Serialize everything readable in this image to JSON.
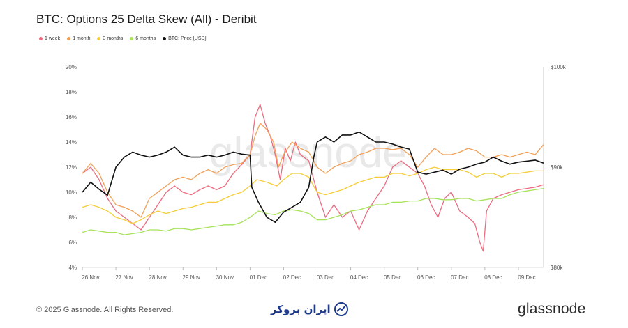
{
  "chart_data": {
    "type": "line",
    "title": "BTC: Options 25 Delta Skew (All) - Deribit",
    "watermark": "glassnode",
    "x_tick_labels": [
      "26 Nov",
      "27 Nov",
      "28 Nov",
      "29 Nov",
      "30 Nov",
      "01 Dec",
      "02 Dec",
      "03 Dec",
      "04 Dec",
      "05 Dec",
      "06 Dec",
      "07 Dec",
      "08 Dec",
      "09 Dec"
    ],
    "x_range_days": [
      0,
      13.75
    ],
    "y_left": {
      "ticks": [
        "4%",
        "6%",
        "8%",
        "10%",
        "12%",
        "14%",
        "16%",
        "18%",
        "20%"
      ],
      "range": [
        4,
        20
      ]
    },
    "y_right": {
      "ticks": [
        "$80k",
        "$90k",
        "$100k"
      ],
      "range": [
        80000,
        100000
      ]
    },
    "series": [
      {
        "name": "1 week",
        "color": "#ec6b7f",
        "axis": "left",
        "points": [
          [
            0,
            11.5
          ],
          [
            0.25,
            12.0
          ],
          [
            0.5,
            11.0
          ],
          [
            0.75,
            9.5
          ],
          [
            1.0,
            8.5
          ],
          [
            1.25,
            8.0
          ],
          [
            1.5,
            7.5
          ],
          [
            1.75,
            7.0
          ],
          [
            2.0,
            8.0
          ],
          [
            2.25,
            9.0
          ],
          [
            2.5,
            10.0
          ],
          [
            2.75,
            10.5
          ],
          [
            3.0,
            10.0
          ],
          [
            3.25,
            9.8
          ],
          [
            3.5,
            10.2
          ],
          [
            3.75,
            10.5
          ],
          [
            4.0,
            10.2
          ],
          [
            4.25,
            10.5
          ],
          [
            4.5,
            11.5
          ],
          [
            4.75,
            12.2
          ],
          [
            5.0,
            13.0
          ],
          [
            5.15,
            16.0
          ],
          [
            5.3,
            17.0
          ],
          [
            5.45,
            15.5
          ],
          [
            5.6,
            14.5
          ],
          [
            5.75,
            13.0
          ],
          [
            5.9,
            11.0
          ],
          [
            6.05,
            13.5
          ],
          [
            6.2,
            12.5
          ],
          [
            6.35,
            14.0
          ],
          [
            6.5,
            13.0
          ],
          [
            6.75,
            12.5
          ],
          [
            7.0,
            10.0
          ],
          [
            7.25,
            8.0
          ],
          [
            7.5,
            9.0
          ],
          [
            7.75,
            8.0
          ],
          [
            8.0,
            8.5
          ],
          [
            8.25,
            7.0
          ],
          [
            8.5,
            8.5
          ],
          [
            8.75,
            9.5
          ],
          [
            9.0,
            10.5
          ],
          [
            9.25,
            12.0
          ],
          [
            9.5,
            12.5
          ],
          [
            9.75,
            12.0
          ],
          [
            10.0,
            11.5
          ],
          [
            10.2,
            10.5
          ],
          [
            10.4,
            9.0
          ],
          [
            10.6,
            8.0
          ],
          [
            10.8,
            9.5
          ],
          [
            11.0,
            10.0
          ],
          [
            11.25,
            8.5
          ],
          [
            11.5,
            8.0
          ],
          [
            11.7,
            7.5
          ],
          [
            11.85,
            6.0
          ],
          [
            11.95,
            5.3
          ],
          [
            12.05,
            8.5
          ],
          [
            12.25,
            9.5
          ],
          [
            12.5,
            9.8
          ],
          [
            12.75,
            10.0
          ],
          [
            13.0,
            10.2
          ],
          [
            13.25,
            10.3
          ],
          [
            13.5,
            10.4
          ],
          [
            13.75,
            10.6
          ]
        ]
      },
      {
        "name": "1 month",
        "color": "#f0a057",
        "axis": "left",
        "points": [
          [
            0,
            11.5
          ],
          [
            0.25,
            12.3
          ],
          [
            0.5,
            11.5
          ],
          [
            0.75,
            10.0
          ],
          [
            1.0,
            9.0
          ],
          [
            1.25,
            8.8
          ],
          [
            1.5,
            8.5
          ],
          [
            1.75,
            8.0
          ],
          [
            2.0,
            9.5
          ],
          [
            2.25,
            10.0
          ],
          [
            2.5,
            10.5
          ],
          [
            2.75,
            11.0
          ],
          [
            3.0,
            11.2
          ],
          [
            3.25,
            11.0
          ],
          [
            3.5,
            11.5
          ],
          [
            3.75,
            11.8
          ],
          [
            4.0,
            11.5
          ],
          [
            4.25,
            12.0
          ],
          [
            4.5,
            12.2
          ],
          [
            4.75,
            12.3
          ],
          [
            5.0,
            13.0
          ],
          [
            5.15,
            14.5
          ],
          [
            5.3,
            15.5
          ],
          [
            5.5,
            15.0
          ],
          [
            5.7,
            14.0
          ],
          [
            5.85,
            12.0
          ],
          [
            6.0,
            13.0
          ],
          [
            6.25,
            14.0
          ],
          [
            6.5,
            13.5
          ],
          [
            6.75,
            13.2
          ],
          [
            7.0,
            12.0
          ],
          [
            7.25,
            11.5
          ],
          [
            7.5,
            12.0
          ],
          [
            7.75,
            12.3
          ],
          [
            8.0,
            12.5
          ],
          [
            8.25,
            13.0
          ],
          [
            8.5,
            13.2
          ],
          [
            8.75,
            13.5
          ],
          [
            9.0,
            13.5
          ],
          [
            9.25,
            13.4
          ],
          [
            9.5,
            13.5
          ],
          [
            9.75,
            13.0
          ],
          [
            10.0,
            12.0
          ],
          [
            10.25,
            12.8
          ],
          [
            10.5,
            13.5
          ],
          [
            10.75,
            13.0
          ],
          [
            11.0,
            13.0
          ],
          [
            11.25,
            13.2
          ],
          [
            11.5,
            13.5
          ],
          [
            11.75,
            13.3
          ],
          [
            12.0,
            12.8
          ],
          [
            12.25,
            12.8
          ],
          [
            12.5,
            13.0
          ],
          [
            12.75,
            12.8
          ],
          [
            13.0,
            13.0
          ],
          [
            13.25,
            13.2
          ],
          [
            13.5,
            13.0
          ],
          [
            13.75,
            13.8
          ]
        ]
      },
      {
        "name": "3 months",
        "color": "#f4cd38",
        "axis": "left",
        "points": [
          [
            0,
            8.8
          ],
          [
            0.25,
            9.0
          ],
          [
            0.5,
            8.8
          ],
          [
            0.75,
            8.5
          ],
          [
            1.0,
            8.0
          ],
          [
            1.25,
            7.8
          ],
          [
            1.5,
            7.5
          ],
          [
            1.75,
            7.8
          ],
          [
            2.0,
            8.2
          ],
          [
            2.25,
            8.5
          ],
          [
            2.5,
            8.3
          ],
          [
            2.75,
            8.5
          ],
          [
            3.0,
            8.7
          ],
          [
            3.25,
            8.8
          ],
          [
            3.5,
            9.0
          ],
          [
            3.75,
            9.2
          ],
          [
            4.0,
            9.2
          ],
          [
            4.25,
            9.5
          ],
          [
            4.5,
            9.8
          ],
          [
            4.75,
            10.0
          ],
          [
            5.0,
            10.5
          ],
          [
            5.2,
            11.0
          ],
          [
            5.5,
            10.8
          ],
          [
            5.8,
            10.5
          ],
          [
            6.0,
            11.0
          ],
          [
            6.25,
            11.5
          ],
          [
            6.5,
            11.5
          ],
          [
            6.75,
            11.2
          ],
          [
            7.0,
            10.0
          ],
          [
            7.25,
            9.8
          ],
          [
            7.5,
            10.0
          ],
          [
            7.75,
            10.2
          ],
          [
            8.0,
            10.5
          ],
          [
            8.25,
            10.8
          ],
          [
            8.5,
            11.0
          ],
          [
            8.75,
            11.2
          ],
          [
            9.0,
            11.2
          ],
          [
            9.25,
            11.5
          ],
          [
            9.5,
            11.5
          ],
          [
            9.75,
            11.3
          ],
          [
            10.0,
            11.5
          ],
          [
            10.25,
            11.8
          ],
          [
            10.5,
            12.0
          ],
          [
            10.75,
            11.8
          ],
          [
            11.0,
            11.8
          ],
          [
            11.25,
            11.8
          ],
          [
            11.5,
            11.6
          ],
          [
            11.75,
            11.2
          ],
          [
            12.0,
            11.5
          ],
          [
            12.25,
            11.5
          ],
          [
            12.5,
            11.2
          ],
          [
            12.75,
            11.5
          ],
          [
            13.0,
            11.5
          ],
          [
            13.25,
            11.6
          ],
          [
            13.5,
            11.7
          ],
          [
            13.75,
            11.7
          ]
        ]
      },
      {
        "name": "6 months",
        "color": "#a6e25a",
        "axis": "left",
        "points": [
          [
            0,
            6.8
          ],
          [
            0.25,
            7.0
          ],
          [
            0.5,
            6.9
          ],
          [
            0.75,
            6.8
          ],
          [
            1.0,
            6.8
          ],
          [
            1.25,
            6.6
          ],
          [
            1.5,
            6.7
          ],
          [
            1.75,
            6.8
          ],
          [
            2.0,
            7.0
          ],
          [
            2.25,
            7.0
          ],
          [
            2.5,
            6.9
          ],
          [
            2.75,
            7.1
          ],
          [
            3.0,
            7.1
          ],
          [
            3.25,
            7.0
          ],
          [
            3.5,
            7.1
          ],
          [
            3.75,
            7.2
          ],
          [
            4.0,
            7.3
          ],
          [
            4.25,
            7.4
          ],
          [
            4.5,
            7.4
          ],
          [
            4.75,
            7.6
          ],
          [
            5.0,
            8.0
          ],
          [
            5.25,
            8.5
          ],
          [
            5.5,
            8.3
          ],
          [
            5.75,
            8.2
          ],
          [
            6.0,
            8.5
          ],
          [
            6.25,
            8.6
          ],
          [
            6.5,
            8.5
          ],
          [
            6.75,
            8.3
          ],
          [
            7.0,
            7.8
          ],
          [
            7.25,
            7.8
          ],
          [
            7.5,
            8.0
          ],
          [
            7.75,
            8.2
          ],
          [
            8.0,
            8.5
          ],
          [
            8.25,
            8.6
          ],
          [
            8.5,
            8.8
          ],
          [
            8.75,
            9.0
          ],
          [
            9.0,
            9.0
          ],
          [
            9.25,
            9.2
          ],
          [
            9.5,
            9.2
          ],
          [
            9.75,
            9.3
          ],
          [
            10.0,
            9.3
          ],
          [
            10.25,
            9.5
          ],
          [
            10.5,
            9.5
          ],
          [
            10.75,
            9.4
          ],
          [
            11.0,
            9.4
          ],
          [
            11.25,
            9.5
          ],
          [
            11.5,
            9.5
          ],
          [
            11.75,
            9.3
          ],
          [
            12.0,
            9.4
          ],
          [
            12.25,
            9.5
          ],
          [
            12.5,
            9.5
          ],
          [
            12.75,
            9.8
          ],
          [
            13.0,
            10.0
          ],
          [
            13.25,
            10.1
          ],
          [
            13.5,
            10.2
          ],
          [
            13.75,
            10.3
          ]
        ]
      },
      {
        "name": "BTC: Price [USD]",
        "color": "#111111",
        "axis": "right",
        "points": [
          [
            0,
            87500
          ],
          [
            0.25,
            88500
          ],
          [
            0.5,
            87800
          ],
          [
            0.75,
            87200
          ],
          [
            1.0,
            90000
          ],
          [
            1.25,
            91000
          ],
          [
            1.5,
            91500
          ],
          [
            1.75,
            91200
          ],
          [
            2.0,
            91000
          ],
          [
            2.25,
            91200
          ],
          [
            2.5,
            91500
          ],
          [
            2.75,
            92000
          ],
          [
            3.0,
            91200
          ],
          [
            3.25,
            91000
          ],
          [
            3.5,
            91000
          ],
          [
            3.75,
            91200
          ],
          [
            4.0,
            91000
          ],
          [
            4.25,
            91200
          ],
          [
            4.5,
            91500
          ],
          [
            4.75,
            91300
          ],
          [
            5.0,
            91200
          ],
          [
            5.05,
            88000
          ],
          [
            5.25,
            86500
          ],
          [
            5.5,
            85000
          ],
          [
            5.75,
            84500
          ],
          [
            6.0,
            85500
          ],
          [
            6.25,
            86000
          ],
          [
            6.5,
            86500
          ],
          [
            6.75,
            88000
          ],
          [
            6.9,
            91000
          ],
          [
            7.0,
            92500
          ],
          [
            7.25,
            93000
          ],
          [
            7.5,
            92500
          ],
          [
            7.75,
            93200
          ],
          [
            8.0,
            93200
          ],
          [
            8.25,
            93500
          ],
          [
            8.5,
            93000
          ],
          [
            8.75,
            92500
          ],
          [
            9.0,
            92500
          ],
          [
            9.25,
            92300
          ],
          [
            9.5,
            92000
          ],
          [
            9.75,
            91800
          ],
          [
            10.0,
            89500
          ],
          [
            10.25,
            89300
          ],
          [
            10.5,
            89500
          ],
          [
            10.75,
            89700
          ],
          [
            11.0,
            89300
          ],
          [
            11.25,
            89800
          ],
          [
            11.5,
            90000
          ],
          [
            11.75,
            90300
          ],
          [
            12.0,
            90500
          ],
          [
            12.25,
            91000
          ],
          [
            12.5,
            90600
          ],
          [
            12.75,
            90300
          ],
          [
            13.0,
            90500
          ],
          [
            13.25,
            90600
          ],
          [
            13.5,
            90700
          ],
          [
            13.75,
            90400
          ]
        ]
      }
    ]
  },
  "footer": {
    "copyright": "© 2025 Glassnode. All Rights Reserved.",
    "brand": "glassnode",
    "partner_logo": "ایران بروکر"
  },
  "colors": {
    "axis": "#cccccc",
    "tick_text": "#555555"
  }
}
